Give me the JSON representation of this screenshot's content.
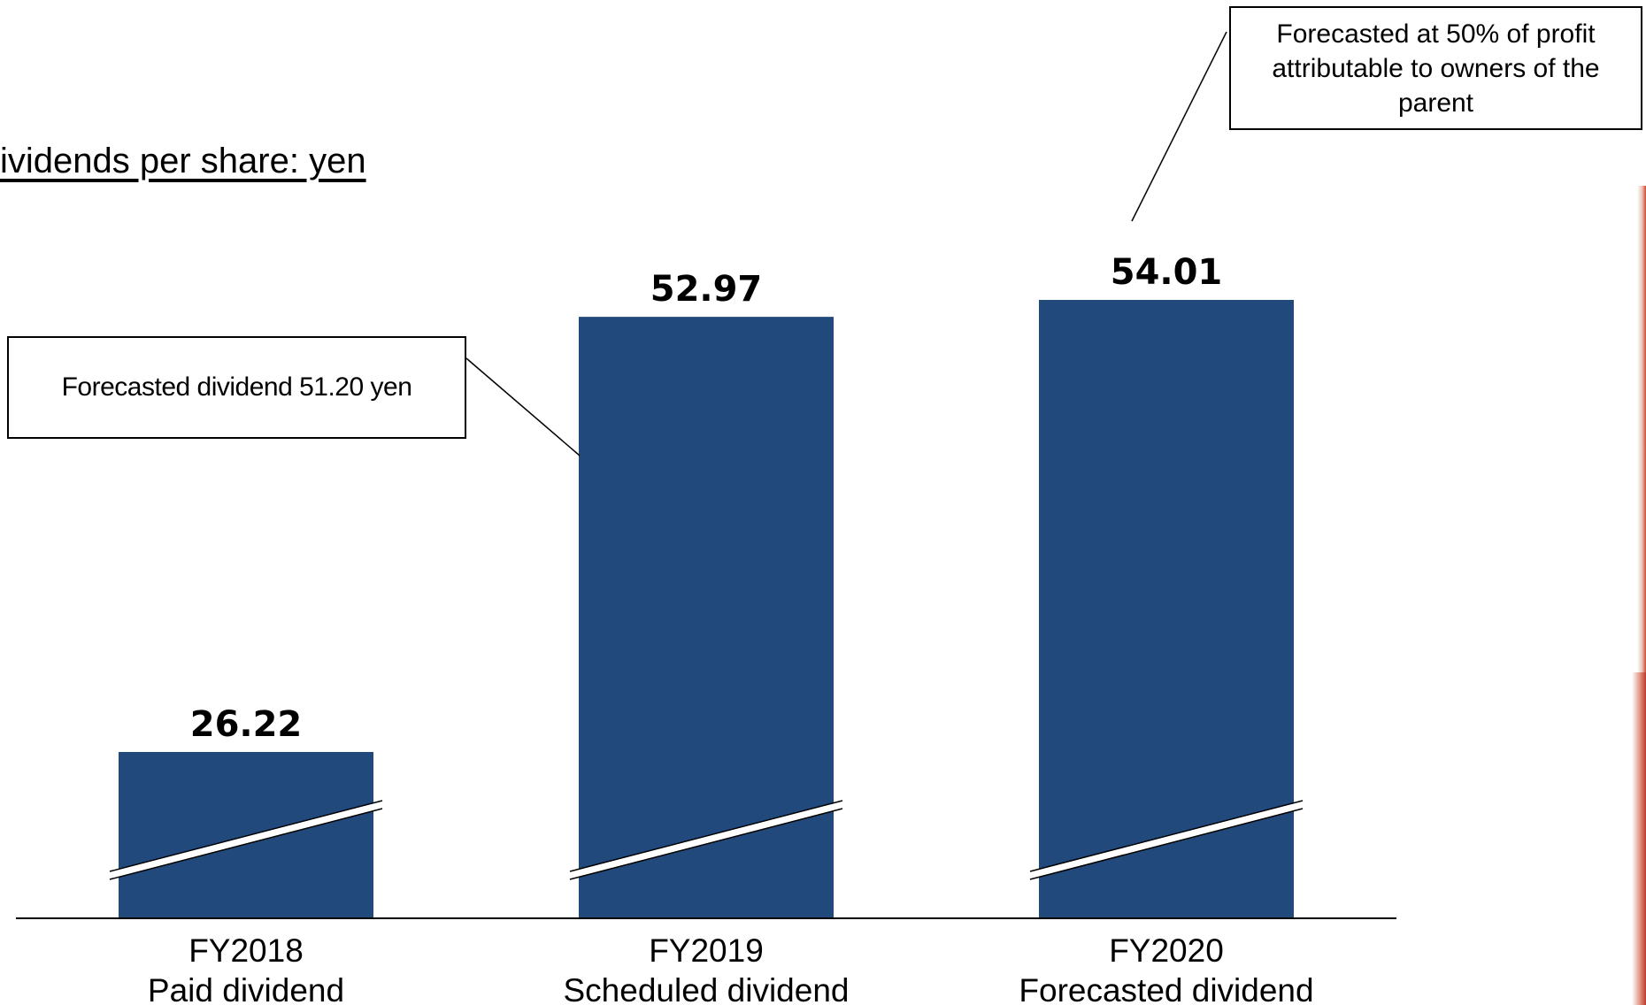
{
  "unit_label": "ividends per share: yen",
  "callouts": {
    "fy2019": "Forecasted dividend 51.20 yen",
    "fy2020": "Forecasted at 50% of profit attributable to owners of the parent"
  },
  "chart_data": {
    "type": "bar",
    "categories": [
      [
        "FY2018",
        "Paid dividend"
      ],
      [
        "FY2019",
        "Scheduled dividend"
      ],
      [
        "FY2020",
        "Forecasted dividend"
      ]
    ],
    "values": [
      26.22,
      52.97,
      54.01
    ],
    "value_labels": [
      "26.22",
      "52.97",
      "54.01"
    ],
    "axis_break": true,
    "bar_color": "#21497b",
    "axis_color": "#000000"
  }
}
